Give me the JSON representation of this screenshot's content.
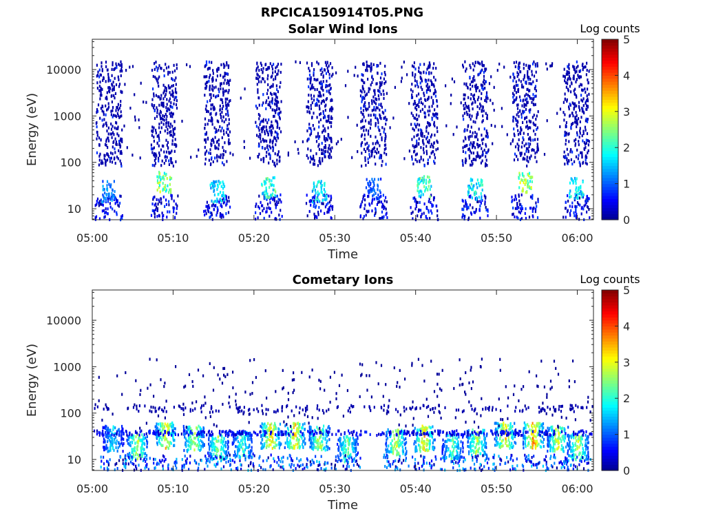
{
  "figure": {
    "title": "RPCICA150914T05.PNG"
  },
  "colormap": {
    "name": "jet",
    "stops": [
      "#00008f",
      "#0000ff",
      "#00ffff",
      "#ffff00",
      "#ff0000",
      "#800000"
    ]
  },
  "chart_data": [
    {
      "type": "heatmap",
      "title": "Solar Wind Ions",
      "xlabel": "Time",
      "ylabel": "Energy (eV)",
      "colorbar_label": "Log counts",
      "colorbar_range": [
        0,
        5
      ],
      "colorbar_ticks": [
        "0",
        "1",
        "2",
        "3",
        "4",
        "5"
      ],
      "x_range": [
        "05:00",
        "06:02"
      ],
      "x_ticks": [
        "05:00",
        "05:10",
        "05:20",
        "05:30",
        "05:40",
        "05:50",
        "06:00"
      ],
      "y_scale": "log",
      "y_range": [
        5.8,
        45000
      ],
      "y_ticks": [
        "10",
        "100",
        "1000",
        "10000"
      ],
      "scan_centers_min": [
        2.0,
        8.8,
        15.4,
        21.7,
        28.0,
        34.7,
        41.0,
        47.3,
        53.5,
        59.8
      ],
      "peak_energy_eV": [
        25,
        40,
        25,
        30,
        25,
        28,
        32,
        28,
        38,
        30
      ],
      "peak_log_counts": [
        1.5,
        3.0,
        2.0,
        2.5,
        2.2,
        1.2,
        2.6,
        2.3,
        3.1,
        2.2
      ]
    },
    {
      "type": "heatmap",
      "title": "Cometary Ions",
      "xlabel": "Time",
      "ylabel": "Energy (eV)",
      "colorbar_label": "Log counts",
      "colorbar_range": [
        0,
        5
      ],
      "colorbar_ticks": [
        "0",
        "1",
        "2",
        "3",
        "4",
        "5"
      ],
      "x_range": [
        "05:00",
        "06:02"
      ],
      "x_ticks": [
        "05:00",
        "05:10",
        "05:20",
        "05:30",
        "05:40",
        "05:50",
        "06:00"
      ],
      "y_scale": "log",
      "y_range": [
        5.8,
        45000
      ],
      "y_ticks": [
        "10",
        "100",
        "1000",
        "10000"
      ],
      "blob_centers_min": [
        2.5,
        5.5,
        9.0,
        12.5,
        15.5,
        18.5,
        22.0,
        25.0,
        28.0,
        31.5,
        37.5,
        41.0,
        44.5,
        47.5,
        51.0,
        54.5,
        57.5,
        60.0
      ],
      "blob_energy_eV": [
        30,
        20,
        35,
        30,
        20,
        22,
        35,
        35,
        30,
        18,
        25,
        30,
        20,
        25,
        35,
        35,
        30,
        20
      ],
      "blob_log_counts": [
        2.0,
        3.2,
        3.6,
        3.2,
        3.0,
        2.4,
        3.8,
        3.8,
        3.2,
        2.8,
        3.4,
        3.8,
        2.6,
        3.2,
        3.8,
        4.2,
        3.4,
        3.2
      ]
    }
  ]
}
